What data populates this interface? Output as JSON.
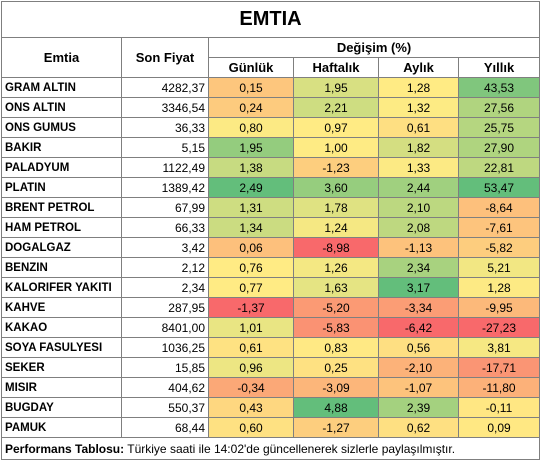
{
  "title": "EMTIA",
  "header": {
    "name": "Emtia",
    "price": "Son Fiyat",
    "change_group": "Değişim (%)",
    "periods": [
      "Günlük",
      "Haftalık",
      "Aylık",
      "Yıllık"
    ]
  },
  "table": {
    "rows": [
      [
        "GRAM ALTIN",
        "4282,37",
        "0,15",
        "1,95",
        "1,28",
        "43,53"
      ],
      [
        "ONS ALTIN",
        "3346,54",
        "0,24",
        "2,21",
        "1,32",
        "27,56"
      ],
      [
        "ONS GUMUS",
        "36,33",
        "0,80",
        "0,97",
        "0,61",
        "25,75"
      ],
      [
        "BAKIR",
        "5,15",
        "1,95",
        "1,00",
        "1,82",
        "27,90"
      ],
      [
        "PALADYUM",
        "1122,49",
        "1,38",
        "-1,23",
        "1,33",
        "22,81"
      ],
      [
        "PLATIN",
        "1389,42",
        "2,49",
        "3,60",
        "2,44",
        "53,47"
      ],
      [
        "BRENT PETROL",
        "67,99",
        "1,31",
        "1,78",
        "2,10",
        "-8,64"
      ],
      [
        "HAM PETROL",
        "66,33",
        "1,34",
        "1,24",
        "2,08",
        "-7,61"
      ],
      [
        "DOGALGAZ",
        "3,42",
        "0,06",
        "-8,98",
        "-1,13",
        "-5,82"
      ],
      [
        "BENZIN",
        "2,12",
        "0,76",
        "1,26",
        "2,34",
        "5,21"
      ],
      [
        "KALORIFER YAKITI",
        "2,34",
        "0,77",
        "1,63",
        "3,17",
        "1,28"
      ],
      [
        "KAHVE",
        "287,95",
        "-1,37",
        "-5,20",
        "-3,34",
        "-9,95"
      ],
      [
        "KAKAO",
        "8401,00",
        "1,01",
        "-5,83",
        "-6,42",
        "-27,23"
      ],
      [
        "SOYA FASULYESI",
        "1036,25",
        "0,61",
        "0,83",
        "0,56",
        "3,81"
      ],
      [
        "SEKER",
        "15,85",
        "0,96",
        "0,25",
        "-2,10",
        "-17,71"
      ],
      [
        "MISIR",
        "404,62",
        "-0,34",
        "-3,09",
        "-1,07",
        "-11,80"
      ],
      [
        "BUGDAY",
        "550,37",
        "0,43",
        "4,88",
        "2,39",
        "-0,11"
      ],
      [
        "PAMUK",
        "68,44",
        "0,60",
        "-1,27",
        "0,62",
        "0,09"
      ]
    ]
  },
  "footer": {
    "label": "Performans Tablosu:",
    "text": "Türkiye saati ile 14:02'de güncellenerek sizlerle paylaşılmıştır."
  }
}
